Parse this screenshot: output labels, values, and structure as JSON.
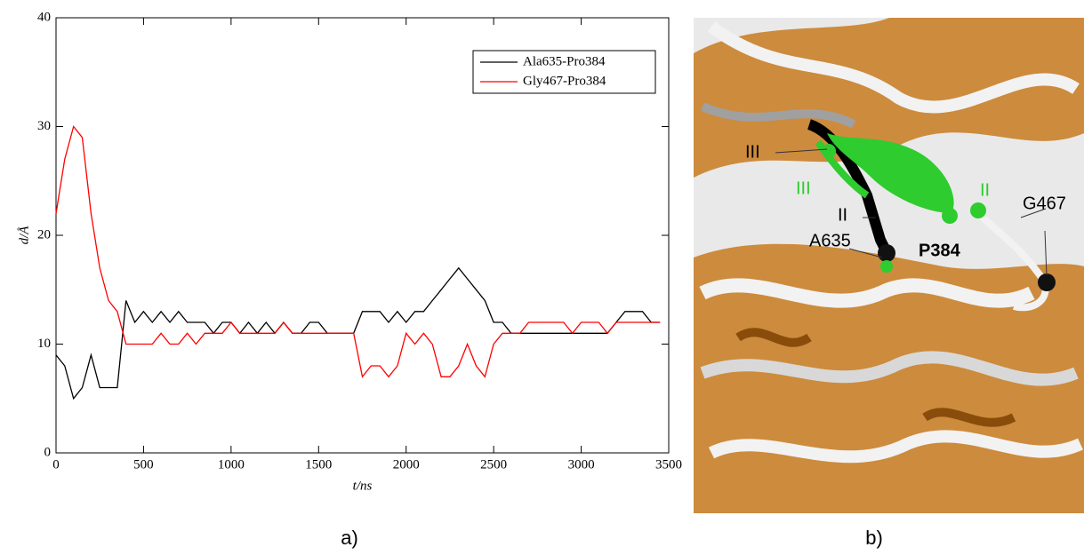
{
  "chart_data": {
    "type": "line",
    "x_label": "t/ns",
    "y_label": "d/Å",
    "xlim": [
      0,
      3500
    ],
    "xticks": [
      0,
      500,
      1000,
      1500,
      2000,
      2500,
      3000,
      3500
    ],
    "ylim": [
      0,
      40
    ],
    "yticks": [
      0,
      10,
      20,
      30,
      40
    ],
    "legend": "upper right",
    "x": [
      0,
      50,
      100,
      150,
      200,
      250,
      300,
      350,
      400,
      450,
      500,
      550,
      600,
      650,
      700,
      750,
      800,
      850,
      900,
      950,
      1000,
      1050,
      1100,
      1150,
      1200,
      1250,
      1300,
      1350,
      1400,
      1450,
      1500,
      1550,
      1600,
      1650,
      1700,
      1750,
      1800,
      1850,
      1900,
      1950,
      2000,
      2050,
      2100,
      2150,
      2200,
      2250,
      2300,
      2350,
      2400,
      2450,
      2500,
      2550,
      2600,
      2650,
      2700,
      2750,
      2800,
      2850,
      2900,
      2950,
      3000,
      3050,
      3100,
      3150,
      3200,
      3250,
      3300,
      3350,
      3400,
      3450
    ],
    "series": [
      {
        "name": "Ala635-Pro384",
        "color": "#000000",
        "values": [
          9,
          8,
          5,
          6,
          9,
          6,
          6,
          6,
          14,
          12,
          13,
          12,
          13,
          12,
          13,
          12,
          12,
          12,
          11,
          12,
          12,
          11,
          12,
          11,
          12,
          11,
          12,
          11,
          11,
          12,
          12,
          11,
          11,
          11,
          11,
          13,
          13,
          13,
          12,
          13,
          12,
          13,
          13,
          14,
          15,
          16,
          17,
          16,
          15,
          14,
          12,
          12,
          11,
          11,
          11,
          11,
          11,
          11,
          11,
          11,
          11,
          11,
          11,
          11,
          12,
          13,
          13,
          13,
          12,
          12
        ]
      },
      {
        "name": "Gly467-Pro384",
        "color": "#ff0000",
        "values": [
          22,
          27,
          30,
          29,
          22,
          17,
          14,
          13,
          10,
          10,
          10,
          10,
          11,
          10,
          10,
          11,
          10,
          11,
          11,
          11,
          12,
          11,
          11,
          11,
          11,
          11,
          12,
          11,
          11,
          11,
          11,
          11,
          11,
          11,
          11,
          7,
          8,
          8,
          7,
          8,
          11,
          10,
          11,
          10,
          7,
          7,
          8,
          10,
          8,
          7,
          10,
          11,
          11,
          11,
          12,
          12,
          12,
          12,
          12,
          11,
          12,
          12,
          12,
          11,
          12,
          12,
          12,
          12,
          12,
          12
        ]
      }
    ]
  },
  "panel_labels": [
    "a)",
    "b)"
  ],
  "structure_labels": {
    "III_black": "III",
    "III_green": "III",
    "II_black": "II",
    "II_green": "II",
    "G467": "G467",
    "A635": "A635",
    "P384": "P384"
  }
}
